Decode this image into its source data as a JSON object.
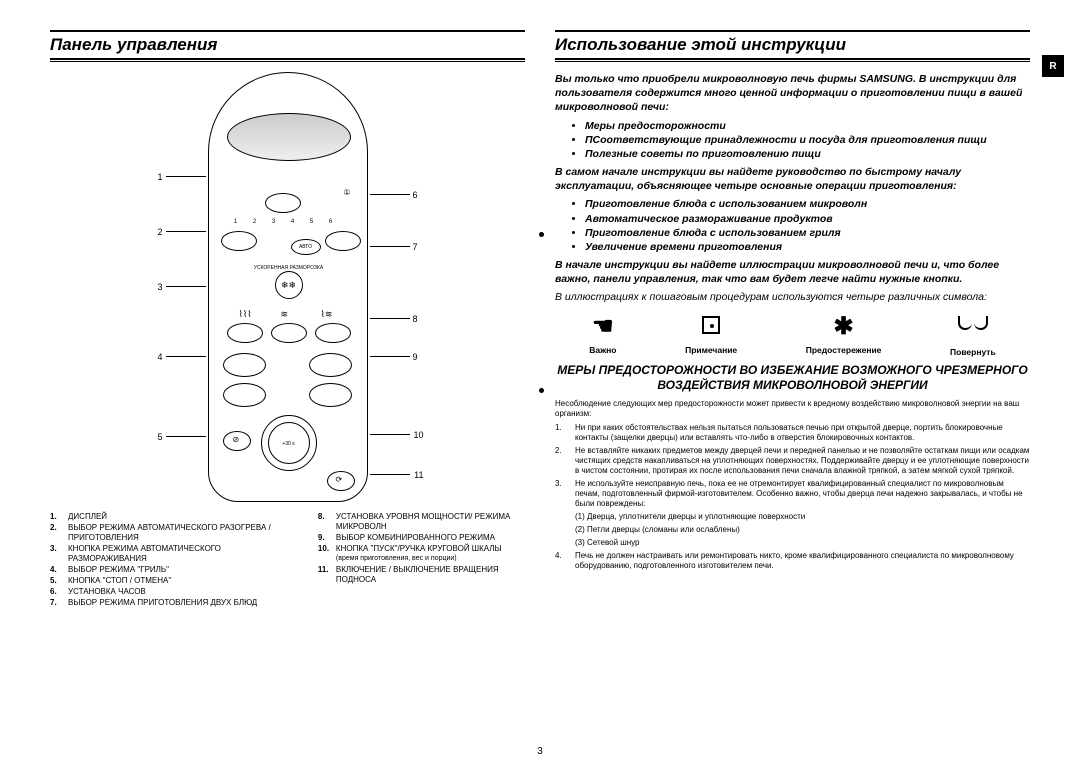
{
  "page_number": "3",
  "left": {
    "title": "Панель управления",
    "panel": {
      "avto": "АВТО",
      "knob": "+30 s",
      "icons_row": [
        "1",
        "2",
        "3",
        "4",
        "5",
        "6"
      ],
      "clock_dot": "①",
      "defrost_ring_text": "УСКОРЕННАЯ РАЗМОРОЗКА"
    },
    "callouts_left": [
      "1",
      "2",
      "3",
      "4",
      "5"
    ],
    "callouts_right": [
      "6",
      "7",
      "8",
      "9",
      "10",
      "11"
    ],
    "legend_left": [
      {
        "n": "1.",
        "t": "ДИСПЛЕЙ"
      },
      {
        "n": "2.",
        "t": "ВЫБОР РЕЖИМА АВТОМАТИЧЕСКОГО РАЗОГРЕВА / ПРИГОТОВЛЕНИЯ"
      },
      {
        "n": "3.",
        "t": "КНОПКА РЕЖИМА АВТОМАТИЧЕСКОГО РАЗМОРАЖИВАНИЯ"
      },
      {
        "n": "4.",
        "t": "ВЫБОР РЕЖИМА \"ГРИЛЬ\""
      },
      {
        "n": "5.",
        "t": "КНОПКА \"СТОП / ОТМЕНА\""
      },
      {
        "n": "6.",
        "t": "УСТАНОВКА ЧАСОВ"
      },
      {
        "n": "7.",
        "t": "ВЫБОР РЕЖИМА ПРИГОТОВЛЕНИЯ ДВУХ БЛЮД"
      }
    ],
    "legend_right": [
      {
        "n": "8.",
        "t": "УСТАНОВКА УРОВНЯ МОЩНОСТИ/ РЕЖИМА МИКРОВОЛН"
      },
      {
        "n": "9.",
        "t": "ВЫБОР КОМБИНИРОВАННОГО РЕЖИМА"
      },
      {
        "n": "10.",
        "t": "КНОПКА \"ПУСК\"/РУЧКА КРУГОВОЙ ШКАЛЫ"
      },
      {
        "n": "",
        "t": "(время приготовления, вес и порции)",
        "sub": true
      },
      {
        "n": "11.",
        "t": "ВКЛЮЧЕНИЕ / ВЫКЛЮЧЕНИЕ ВРАЩЕНИЯ ПОДНОСА"
      }
    ]
  },
  "right": {
    "title": "Использование этой инструкции",
    "badge": "R",
    "intro1": "Вы только что приобрели микроволновую печь фирмы SAMSUNG. В инструкции для пользователя содержится много ценной информации о приготовлении пищи в вашей микроволновой печи:",
    "bullets1": [
      "Меры предосторожности",
      "ПСоответствующие принадлежности и посуда для приготовления пищи",
      "Полезные советы по приготовлению пищи"
    ],
    "intro2": "В самом начале инструкции вы найдете руководство по быстрому началу эксплуатации, объясняющее четыре основные операции приготовления:",
    "bullets2": [
      "Приготовление блюда с использованием микроволн",
      "Автоматическое размораживание продуктов",
      "Приготовление блюда с использованием гриля",
      "Увеличение времени приготовления"
    ],
    "intro3": "В начале инструкции вы найдете иллюстрации микроволновой печи и, что более важно, панели управления, так что вам будет легче найти нужные кнопки.",
    "intro4": "В иллюстрациях к пошаговым процедурам используются четыре различных символа:",
    "symbols": [
      {
        "label": "Важно"
      },
      {
        "label": "Примечание"
      },
      {
        "label": "Предостережение"
      },
      {
        "label": "Повернуть"
      }
    ],
    "warn_title": "МЕРЫ ПРЕДОСТОРОЖНОСТИ ВО ИЗБЕЖАНИЕ ВОЗМОЖНОГО ЧРЕЗМЕРНОГО ВОЗДЕЙСТВИЯ МИКРОВОЛНОВОЙ ЭНЕРГИИ",
    "warn_sub": "Несоблюдение следующих мер предосторожности может привести к вредному воздействию микроволновой энергии на ваш организм:",
    "warn_items": [
      {
        "n": "1.",
        "t": "Ни при каких обстоятельствах нельзя пытаться пользоваться печью при открытой дверце, портить блокировочные контакты (защелки дверцы) или вставлять что-либо в отверстия блокировочных контактов."
      },
      {
        "n": "2.",
        "t": "Не вставляйте никаких предметов между дверцей печи и передней панелью и не позволяйте остаткам пищи или осадкам чистящих средств накапливаться на уплотняющих поверхностях. Поддерживайте дверцу и ее уплотняющие поверхности в чистом состоянии, протирая их после использования печи сначала влажной тряпкой, а затем мягкой сухой тряпкой."
      },
      {
        "n": "3.",
        "t": "Не используйте неисправную печь, пока ее не отремонтирует квалифицированный специалист по микроволновым печам, подготовленный фирмой-изготовителем. Особенно важно, чтобы дверца печи надежно закрывалась, и чтобы не были повреждены:"
      },
      {
        "n": "",
        "t": "(1) Дверца, уплотнители дверцы и уплотняющие поверхности",
        "sub": true
      },
      {
        "n": "",
        "t": "(2) Петли дверцы (сломаны или ослаблены)",
        "sub": true
      },
      {
        "n": "",
        "t": "(3) Сетевой шнур",
        "sub": true
      },
      {
        "n": "4.",
        "t": "Печь не должен настраивать или ремонтировать никто, кроме квалифицированного специалиста по микроволновому оборудованию, подготовленного изготовителем печи."
      }
    ]
  }
}
